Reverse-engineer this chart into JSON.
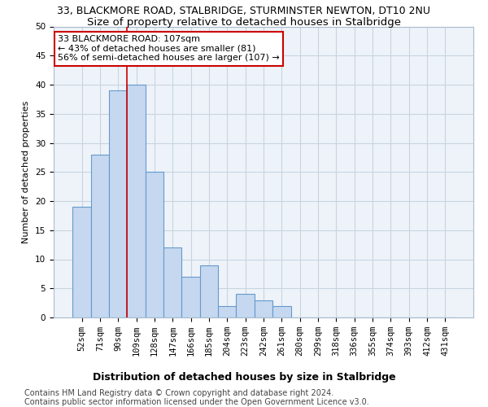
{
  "title1": "33, BLACKMORE ROAD, STALBRIDGE, STURMINSTER NEWTON, DT10 2NU",
  "title2": "Size of property relative to detached houses in Stalbridge",
  "xlabel": "Distribution of detached houses by size in Stalbridge",
  "ylabel": "Number of detached properties",
  "categories": [
    "52sqm",
    "71sqm",
    "90sqm",
    "109sqm",
    "128sqm",
    "147sqm",
    "166sqm",
    "185sqm",
    "204sqm",
    "223sqm",
    "242sqm",
    "261sqm",
    "280sqm",
    "299sqm",
    "318sqm",
    "336sqm",
    "355sqm",
    "374sqm",
    "393sqm",
    "412sqm",
    "431sqm"
  ],
  "values": [
    19,
    28,
    39,
    40,
    25,
    12,
    7,
    9,
    2,
    4,
    3,
    2,
    0,
    0,
    0,
    0,
    0,
    0,
    0,
    0,
    0
  ],
  "bar_color": "#c5d8f0",
  "bar_edge_color": "#6699cc",
  "grid_color": "#c8d4e0",
  "vline_color": "#cc0000",
  "annotation_text": "33 BLACKMORE ROAD: 107sqm\n← 43% of detached houses are smaller (81)\n56% of semi-detached houses are larger (107) →",
  "annotation_box_color": "#cc0000",
  "footer1": "Contains HM Land Registry data © Crown copyright and database right 2024.",
  "footer2": "Contains public sector information licensed under the Open Government Licence v3.0.",
  "ylim": [
    0,
    50
  ],
  "yticks": [
    0,
    5,
    10,
    15,
    20,
    25,
    30,
    35,
    40,
    45,
    50
  ],
  "title1_fontsize": 9,
  "title2_fontsize": 9.5,
  "xlabel_fontsize": 9,
  "ylabel_fontsize": 8,
  "tick_fontsize": 7.5,
  "footer_fontsize": 7,
  "annotation_fontsize": 8
}
